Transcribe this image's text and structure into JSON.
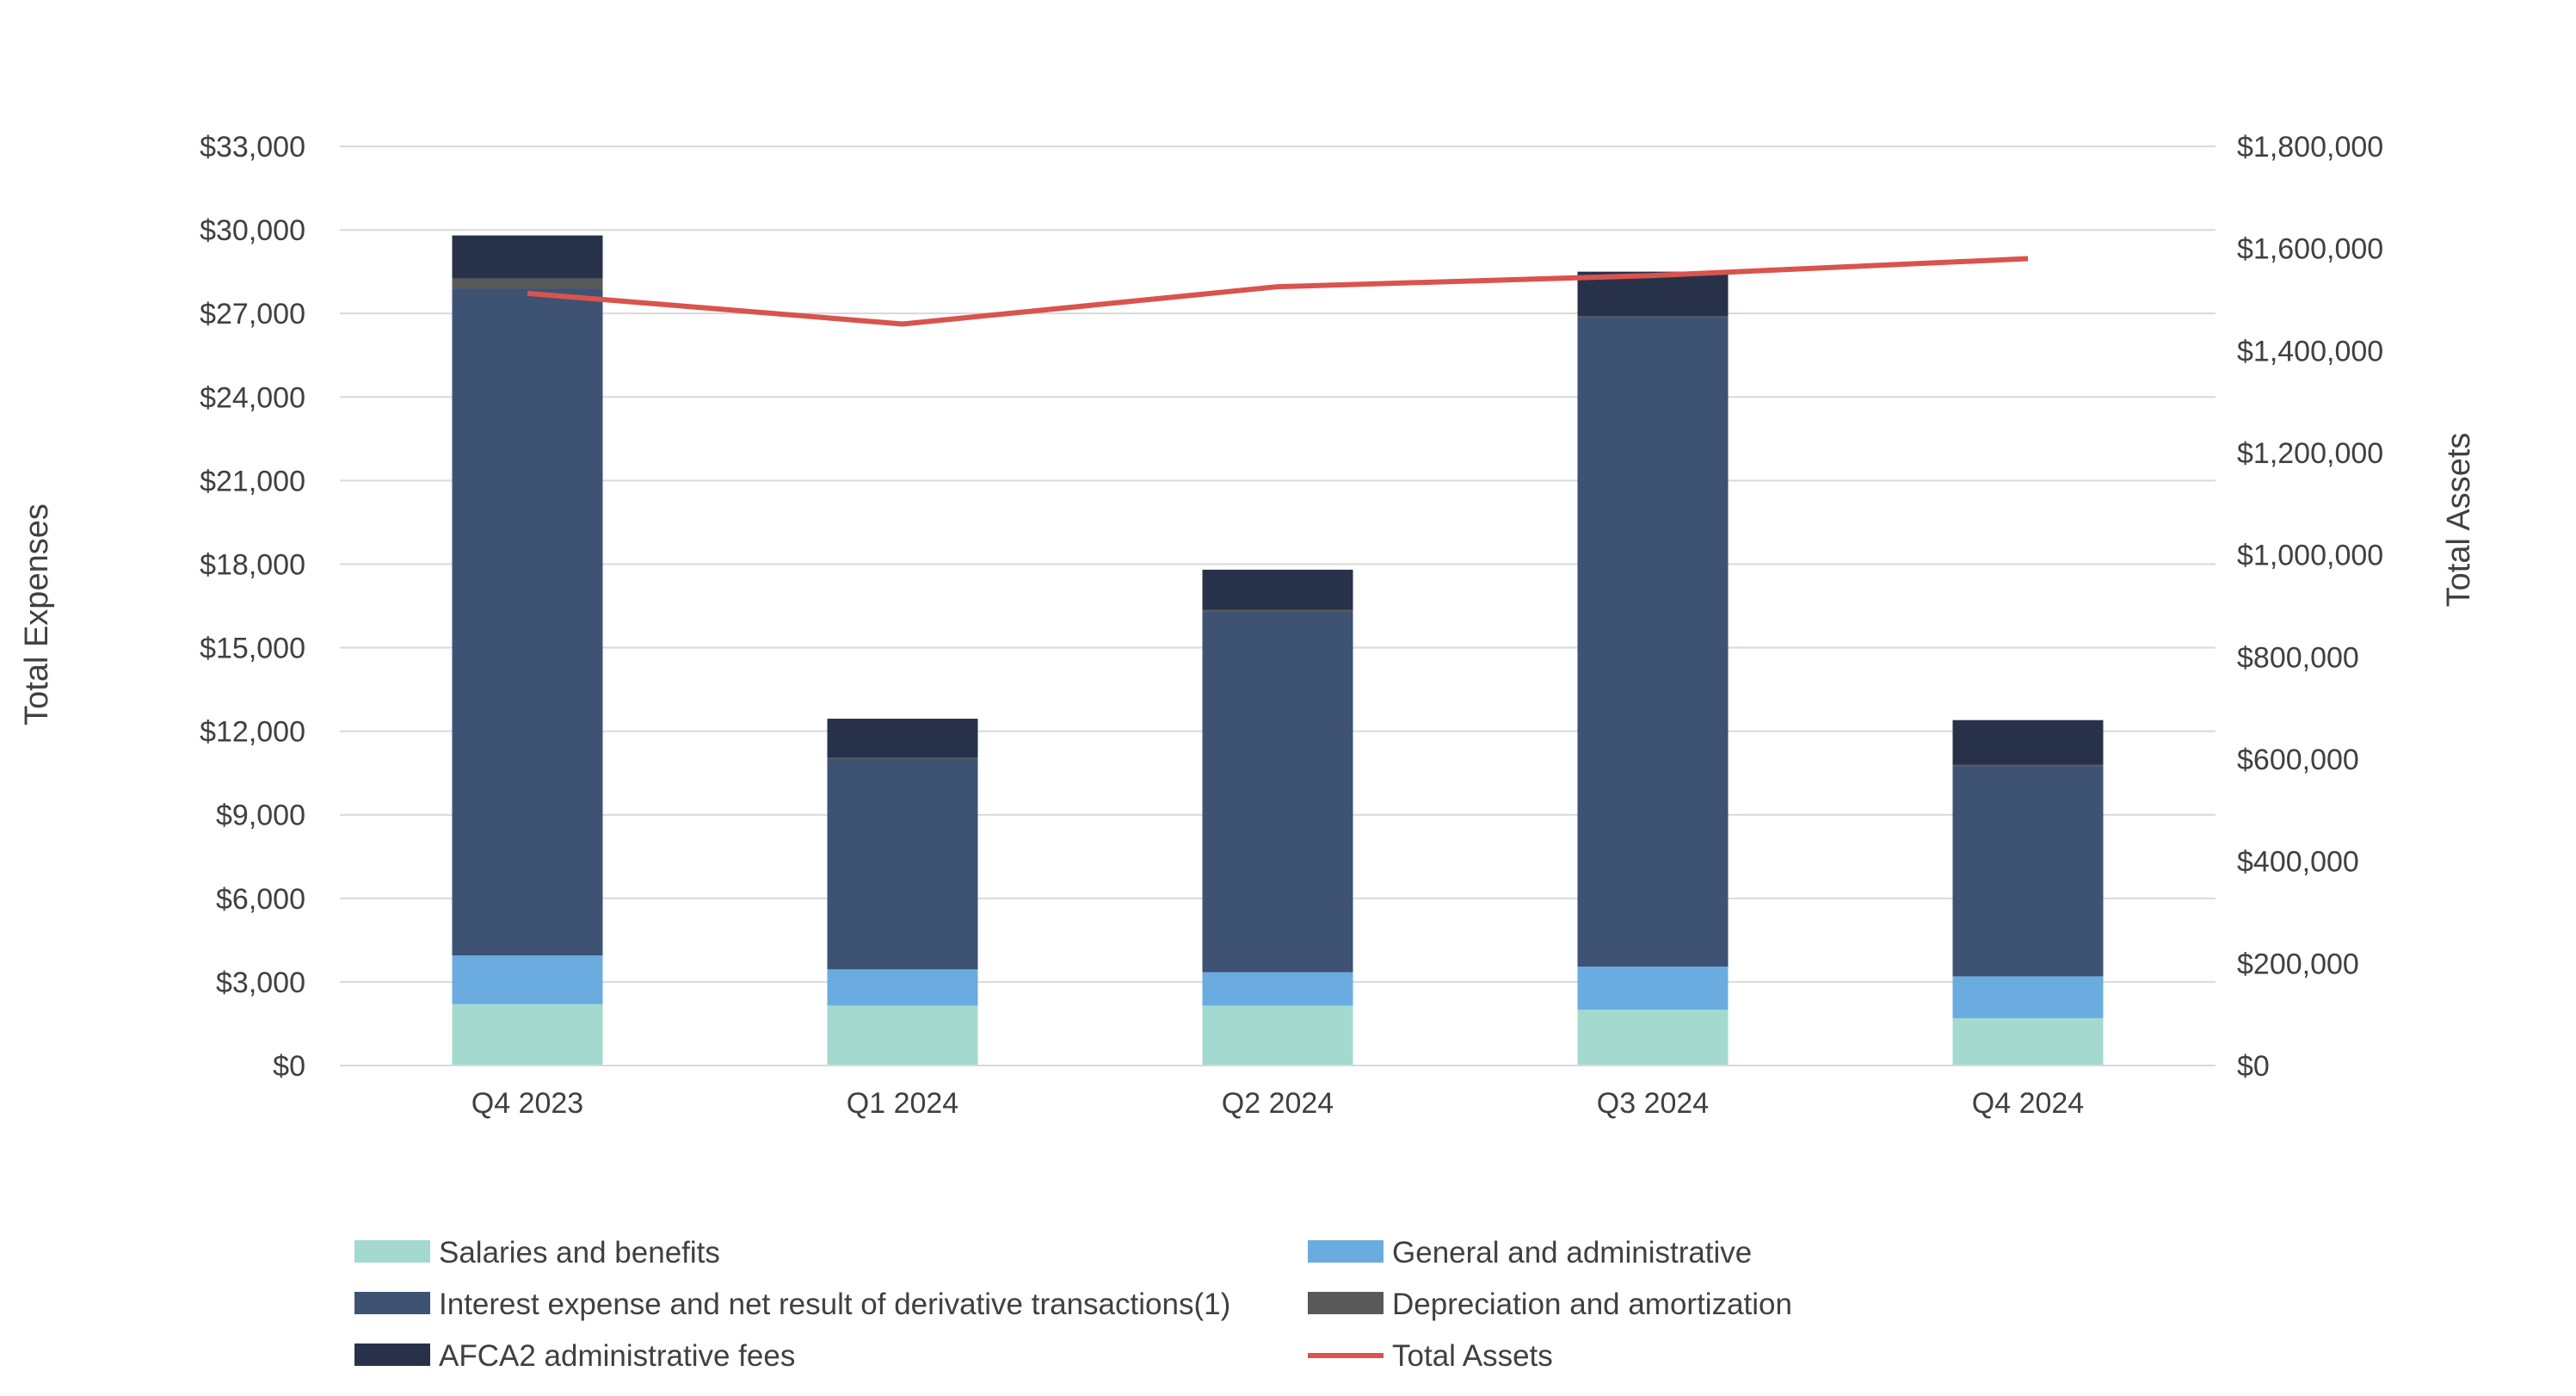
{
  "chart_data": {
    "type": "bar",
    "stacked": true,
    "categories": [
      "Q4 2023",
      "Q1 2024",
      "Q2 2024",
      "Q3 2024",
      "Q4 2024"
    ],
    "series": [
      {
        "name": "Salaries and benefits",
        "color": "#a3d9cf",
        "values": [
          2200,
          2150,
          2150,
          2000,
          1700
        ]
      },
      {
        "name": "General and administrative",
        "color": "#6aace0",
        "values": [
          1750,
          1300,
          1200,
          1550,
          1500
        ]
      },
      {
        "name": "Interest expense and net result of derivative transactions(1)",
        "color": "#3e5273",
        "values": [
          23950,
          7550,
          12950,
          23300,
          7550
        ]
      },
      {
        "name": "Depreciation and amortization",
        "color": "#595959",
        "values": [
          350,
          50,
          50,
          50,
          50
        ]
      },
      {
        "name": "AFCA2 administrative fees",
        "color": "#27324a",
        "values": [
          1550,
          1400,
          1450,
          1600,
          1600
        ]
      }
    ],
    "line_series": {
      "name": "Total Assets",
      "color": "#d9534f",
      "values": [
        1512000,
        1452000,
        1525000,
        1547000,
        1580000
      ]
    },
    "ylabel": "Total Expenses",
    "y2label": "Total Assets",
    "ylim": [
      0,
      33000
    ],
    "y2lim": [
      0,
      1800000
    ],
    "yticks": [
      "$0",
      "$3,000",
      "$6,000",
      "$9,000",
      "$12,000",
      "$15,000",
      "$18,000",
      "$21,000",
      "$24,000",
      "$27,000",
      "$30,000",
      "$33,000"
    ],
    "y2ticks": [
      "$0",
      "$200,000",
      "$400,000",
      "$600,000",
      "$800,000",
      "$1,000,000",
      "$1,200,000",
      "$1,400,000",
      "$1,600,000",
      "$1,800,000"
    ],
    "grid": true,
    "legend_position": "bottom"
  }
}
